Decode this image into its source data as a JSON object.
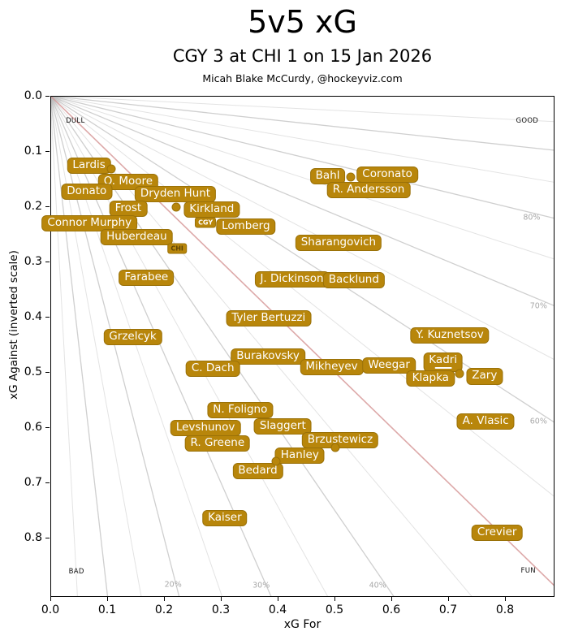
{
  "header": {
    "title": "5v5 xG",
    "subtitle": "CGY 3 at CHI 1 on 15 Jan 2026",
    "credit": "Micah Blake McCurdy, @hockeyviz.com"
  },
  "axes": {
    "x_label": "xG For",
    "y_label": "xG Against (inverted scale)",
    "x_ticks": [
      "0.0",
      "0.1",
      "0.2",
      "0.3",
      "0.4",
      "0.5",
      "0.6",
      "0.7",
      "0.8"
    ],
    "y_ticks": [
      "0.0",
      "0.1",
      "0.2",
      "0.3",
      "0.4",
      "0.5",
      "0.6",
      "0.7",
      "0.8"
    ]
  },
  "colors": {
    "label_bg": "#b8860b",
    "label_border": "#9a7108",
    "label_text": "#ffffff",
    "line_50pct": "#dda9a9",
    "line_decade": "#cfcfcf",
    "line_minor": "#e3e3e3",
    "pct_label_text": "#a8a8a8",
    "axis_frame": "#000000",
    "chi_tag_text": "#5f4503",
    "cgy_tag_text": "#ffffff"
  },
  "chart_data": {
    "type": "scatter",
    "title": "5v5 xG",
    "subtitle": "CGY 3 at CHI 1 on 15 Jan 2026",
    "xlabel": "xG For",
    "ylabel": "xG Against (inverted scale)",
    "xlim": [
      0,
      0.887
    ],
    "ylim": [
      0,
      0.907
    ],
    "y_inverted": true,
    "grid": "radial percentage fan from origin",
    "pct_lines": [
      5,
      10,
      15,
      20,
      25,
      30,
      35,
      40,
      45,
      50,
      55,
      60,
      65,
      70,
      75,
      80,
      85,
      90,
      95
    ],
    "pct_line_50_is_red": true,
    "pct_labels": [
      {
        "label": "80%",
        "x": 0.847,
        "y": 0.221
      },
      {
        "label": "70%",
        "x": 0.859,
        "y": 0.381
      },
      {
        "label": "60%",
        "x": 0.859,
        "y": 0.59
      },
      {
        "label": "40%",
        "x": 0.576,
        "y": 0.887
      },
      {
        "label": "30%",
        "x": 0.371,
        "y": 0.887
      },
      {
        "label": "20%",
        "x": 0.216,
        "y": 0.885
      }
    ],
    "corners": [
      {
        "label": "DULL",
        "x": 0.044,
        "y": 0.046
      },
      {
        "label": "GOOD",
        "x": 0.839,
        "y": 0.046
      },
      {
        "label": "BAD",
        "x": 0.046,
        "y": 0.862
      },
      {
        "label": "FUN",
        "x": 0.841,
        "y": 0.86
      }
    ],
    "players": [
      {
        "name": "Lardis",
        "x": 0.068,
        "y": 0.127
      },
      {
        "name": "O. Moore",
        "x": 0.137,
        "y": 0.156
      },
      {
        "name": "Donato",
        "x": 0.064,
        "y": 0.174
      },
      {
        "name": "Dryden Hunt",
        "x": 0.22,
        "y": 0.178
      },
      {
        "name": "Frost",
        "x": 0.137,
        "y": 0.204
      },
      {
        "name": "Kirkland",
        "x": 0.284,
        "y": 0.206
      },
      {
        "name": "Connor Murphy",
        "x": 0.069,
        "y": 0.231
      },
      {
        "name": "Lomberg",
        "x": 0.344,
        "y": 0.237
      },
      {
        "name": "Huberdeau",
        "x": 0.152,
        "y": 0.256
      },
      {
        "name": "Bahl",
        "x": 0.488,
        "y": 0.146
      },
      {
        "name": "Coronato",
        "x": 0.593,
        "y": 0.143
      },
      {
        "name": "R. Andersson",
        "x": 0.56,
        "y": 0.171
      },
      {
        "name": "Sharangovich",
        "x": 0.507,
        "y": 0.266
      },
      {
        "name": "Farabee",
        "x": 0.169,
        "y": 0.329
      },
      {
        "name": "J. Dickinson",
        "x": 0.425,
        "y": 0.332
      },
      {
        "name": "Backlund",
        "x": 0.534,
        "y": 0.334
      },
      {
        "name": "Tyler Bertuzzi",
        "x": 0.384,
        "y": 0.403
      },
      {
        "name": "Grzelcyk",
        "x": 0.145,
        "y": 0.437
      },
      {
        "name": "Y. Kuznetsov",
        "x": 0.703,
        "y": 0.434
      },
      {
        "name": "Burakovsky",
        "x": 0.383,
        "y": 0.472
      },
      {
        "name": "Kadri",
        "x": 0.691,
        "y": 0.482,
        "underline": true
      },
      {
        "name": "C. Dach",
        "x": 0.286,
        "y": 0.494
      },
      {
        "name": "Mikheyev",
        "x": 0.495,
        "y": 0.491
      },
      {
        "name": "Weegar",
        "x": 0.596,
        "y": 0.488
      },
      {
        "name": "Klapka",
        "x": 0.669,
        "y": 0.512
      },
      {
        "name": "Zary",
        "x": 0.764,
        "y": 0.508
      },
      {
        "name": "N. Foligno",
        "x": 0.334,
        "y": 0.569
      },
      {
        "name": "A. Vlasic",
        "x": 0.766,
        "y": 0.59
      },
      {
        "name": "Levshunov",
        "x": 0.273,
        "y": 0.601
      },
      {
        "name": "Slaggert",
        "x": 0.409,
        "y": 0.599
      },
      {
        "name": "Brzustewicz",
        "x": 0.51,
        "y": 0.624
      },
      {
        "name": "R. Greene",
        "x": 0.294,
        "y": 0.629
      },
      {
        "name": "Hanley",
        "x": 0.439,
        "y": 0.651
      },
      {
        "name": "Bedard",
        "x": 0.365,
        "y": 0.679
      },
      {
        "name": "Kaiser",
        "x": 0.307,
        "y": 0.765
      },
      {
        "name": "Crevier",
        "x": 0.786,
        "y": 0.791
      }
    ],
    "team_tags": [
      {
        "label": "CGY",
        "x": 0.273,
        "y": 0.229,
        "text": "light"
      },
      {
        "label": "CHI",
        "x": 0.223,
        "y": 0.277,
        "text": "dark"
      }
    ],
    "dots": [
      {
        "x": 0.107,
        "y": 0.132
      },
      {
        "x": 0.221,
        "y": 0.201
      },
      {
        "x": 0.529,
        "y": 0.147
      },
      {
        "x": 0.72,
        "y": 0.503
      },
      {
        "x": 0.397,
        "y": 0.662
      },
      {
        "x": 0.501,
        "y": 0.637
      }
    ]
  }
}
